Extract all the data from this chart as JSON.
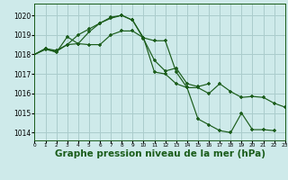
{
  "background_color": "#ceeaea",
  "grid_color": "#aacccc",
  "line_color": "#1a5c1a",
  "xlabel": "Graphe pression niveau de la mer (hPa)",
  "xlabel_fontsize": 7.5,
  "yticks": [
    1014,
    1015,
    1016,
    1017,
    1018,
    1019,
    1020
  ],
  "xticks": [
    0,
    1,
    2,
    3,
    4,
    5,
    6,
    7,
    8,
    9,
    10,
    11,
    12,
    13,
    14,
    15,
    16,
    17,
    18,
    19,
    20,
    21,
    22,
    23
  ],
  "ylim": [
    1013.6,
    1020.6
  ],
  "xlim": [
    0,
    23
  ],
  "series": [
    {
      "x": [
        0,
        1,
        2,
        3,
        4,
        5,
        6,
        7,
        8,
        9,
        10,
        11,
        12,
        13,
        14,
        15,
        16,
        17,
        18,
        19,
        20,
        21,
        22,
        23
      ],
      "y": [
        1018.0,
        1018.3,
        1018.2,
        1018.5,
        1018.55,
        1018.5,
        1018.5,
        1019.0,
        1019.2,
        1019.2,
        1018.85,
        1018.7,
        1018.7,
        1017.1,
        1016.3,
        1016.3,
        1016.0,
        1016.5,
        1016.1,
        1015.8,
        1015.85,
        1015.8,
        1015.5,
        1015.3
      ]
    },
    {
      "x": [
        0,
        1,
        2,
        3,
        4,
        5,
        6,
        7,
        8,
        9,
        10,
        11,
        12,
        13,
        14,
        15,
        16,
        17,
        18,
        19,
        20,
        21,
        22
      ],
      "y": [
        1018.0,
        1018.25,
        1018.15,
        1018.5,
        1019.0,
        1019.3,
        1019.6,
        1019.9,
        1020.0,
        1019.75,
        1018.85,
        1017.1,
        1017.0,
        1016.5,
        1016.3,
        1014.7,
        1014.4,
        1014.1,
        1014.0,
        1015.0,
        1014.15,
        1014.15,
        1014.1
      ]
    },
    {
      "x": [
        0,
        1,
        2,
        3,
        4,
        5,
        6,
        7,
        8,
        9,
        10,
        11,
        12,
        13,
        14,
        15,
        16
      ],
      "y": [
        1018.0,
        1018.3,
        1018.1,
        1018.9,
        1018.55,
        1019.15,
        1019.6,
        1019.85,
        1020.0,
        1019.75,
        1018.8,
        1017.7,
        1017.15,
        1017.3,
        1016.5,
        1016.35,
        1016.5
      ]
    }
  ]
}
